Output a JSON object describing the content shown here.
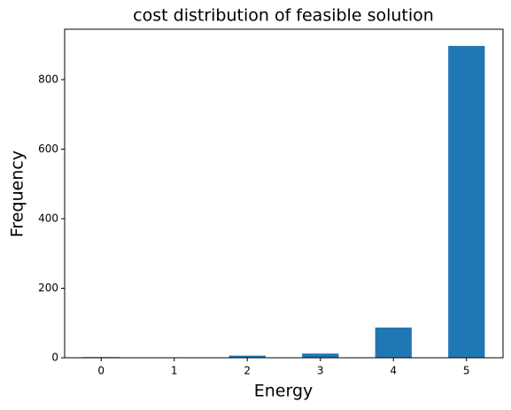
{
  "chart_data": {
    "type": "bar",
    "title": "cost distribution of feasible solution",
    "xlabel": "Energy",
    "ylabel": "Frequency",
    "categories": [
      "0",
      "1",
      "2",
      "3",
      "4",
      "5"
    ],
    "values": [
      2,
      0,
      6,
      12,
      87,
      897
    ],
    "color": "#1f77b4",
    "ylim": [
      0,
      945
    ],
    "yticks": [
      0,
      200,
      400,
      600,
      800
    ],
    "grid": false
  }
}
